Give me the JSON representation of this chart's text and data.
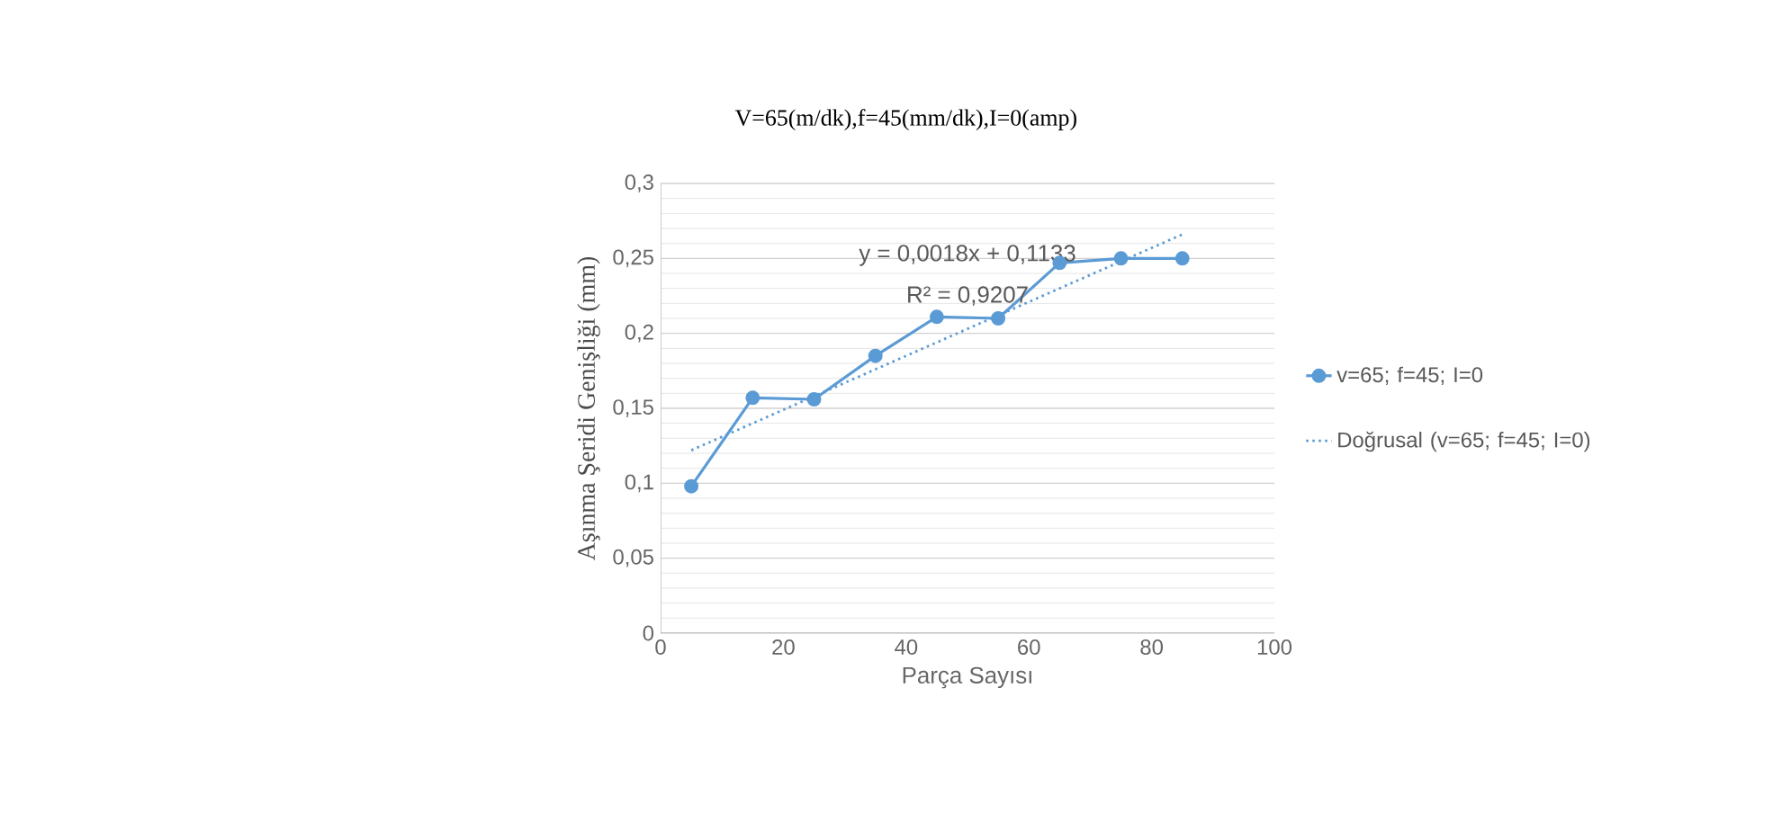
{
  "chart_data": {
    "type": "line",
    "title": "V=65(m/dk),f=45(mm/dk),I=0(amp)",
    "xlabel": "Parça Sayısı",
    "ylabel": "Aşınma Şeridi Genişliği (mm)",
    "x": [
      5,
      15,
      25,
      35,
      45,
      55,
      65,
      75,
      85
    ],
    "series": [
      {
        "name": "v=65; f=45; I=0",
        "color": "#5b9bd5",
        "marker": "circle",
        "line_style": "solid",
        "values": [
          0.098,
          0.157,
          0.156,
          0.185,
          0.211,
          0.21,
          0.247,
          0.25,
          0.25
        ]
      },
      {
        "name": "Doğrusal (v=65; f=45; I=0)",
        "color": "#5b9bd5",
        "marker": "none",
        "line_style": "dotted",
        "x": [
          5,
          85
        ],
        "values": [
          0.122,
          0.266
        ]
      }
    ],
    "xlim": [
      0,
      100
    ],
    "xticks": [
      0,
      20,
      40,
      60,
      80,
      100
    ],
    "ylim": [
      0,
      0.3
    ],
    "yticks": [
      {
        "value": 0,
        "label": "0"
      },
      {
        "value": 0.05,
        "label": "0,05"
      },
      {
        "value": 0.1,
        "label": "0,1"
      },
      {
        "value": 0.15,
        "label": "0,15"
      },
      {
        "value": 0.2,
        "label": "0,2"
      },
      {
        "value": 0.25,
        "label": "0,25"
      },
      {
        "value": 0.3,
        "label": "0,3"
      }
    ],
    "grid": "y",
    "legend": "right",
    "annotations": [
      "y = 0,0018x + 0,1133",
      "R² = 0,9207"
    ]
  }
}
